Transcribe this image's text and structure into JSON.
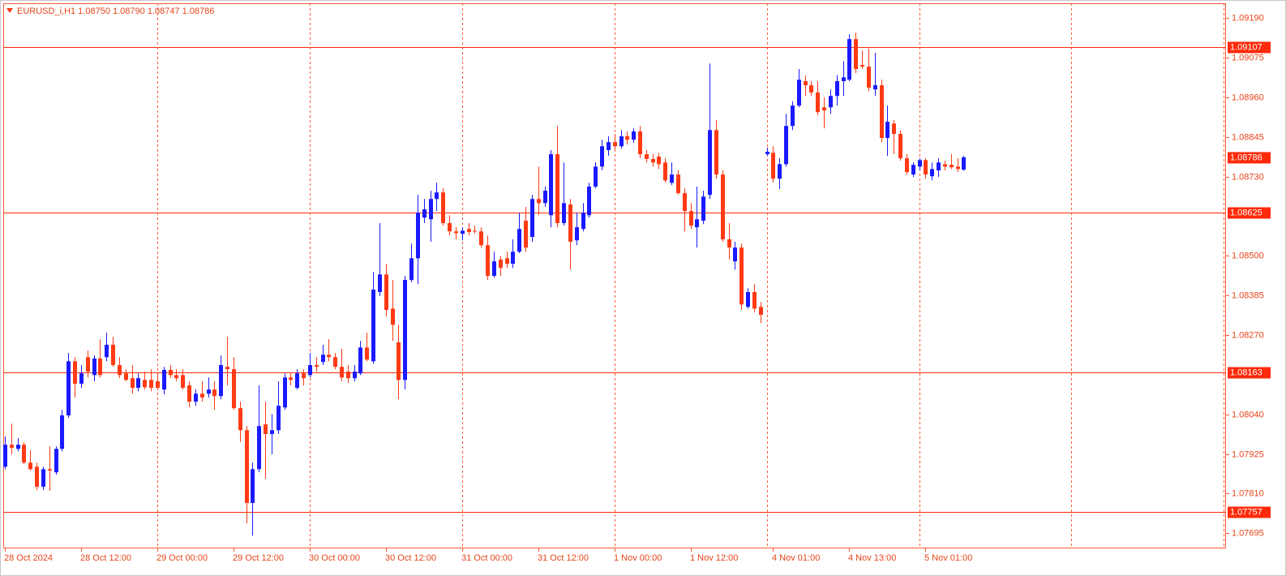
{
  "chart_data": {
    "type": "candlestick",
    "title": "EURUSD_i,H1  1.08750 1.08790 1.08747 1.08786",
    "categories": [
      "28 Oct 2024",
      null,
      null,
      null,
      null,
      null,
      null,
      null,
      null,
      null,
      null,
      null,
      "28 Oct 12:00",
      null,
      null,
      null,
      null,
      null,
      null,
      null,
      null,
      null,
      null,
      null,
      "29 Oct 00:00",
      null,
      null,
      null,
      null,
      null,
      null,
      null,
      null,
      null,
      null,
      null,
      "29 Oct 12:00",
      null,
      null,
      null,
      null,
      null,
      null,
      null,
      null,
      null,
      null,
      null,
      "30 Oct 00:00",
      null,
      null,
      null,
      null,
      null,
      null,
      null,
      null,
      null,
      null,
      null,
      "30 Oct 12:00",
      null,
      null,
      null,
      null,
      null,
      null,
      null,
      null,
      null,
      null,
      null,
      "31 Oct 00:00",
      null,
      null,
      null,
      null,
      null,
      null,
      null,
      null,
      null,
      null,
      null,
      "31 Oct 12:00",
      null,
      null,
      null,
      null,
      null,
      null,
      null,
      null,
      null,
      null,
      null,
      "1 Nov 00:00",
      null,
      null,
      null,
      null,
      null,
      null,
      null,
      null,
      null,
      null,
      null,
      "1 Nov 12:00",
      null,
      null,
      null,
      null,
      null,
      null,
      null,
      null,
      null,
      null,
      null,
      null,
      "4 Nov 01:00",
      null,
      null,
      null,
      null,
      null,
      null,
      null,
      null,
      null,
      null,
      null,
      "4 Nov 13:00",
      null,
      null,
      null,
      null,
      null,
      null,
      null,
      null,
      null,
      null,
      null,
      "5 Nov 01:00",
      null,
      null,
      null,
      null,
      null,
      null
    ],
    "open": [
      1.07888,
      1.07952,
      1.0794,
      1.07952,
      1.079,
      1.07888,
      1.0783,
      1.07881,
      1.07872,
      1.0794,
      1.08037,
      1.08194,
      1.08129,
      1.08206,
      1.08154,
      1.08202,
      1.08206,
      1.08242,
      1.08183,
      1.08159,
      1.08145,
      1.08117,
      1.0814,
      1.0814,
      1.08136,
      1.08112,
      1.08169,
      1.08154,
      1.08154,
      1.08124,
      1.08077,
      1.081,
      1.081,
      1.08112,
      1.08093,
      1.08178,
      1.08171,
      1.08058,
      1.07994,
      1.07783,
      1.07881,
      1.08011,
      1.07983,
      1.07994,
      1.0806,
      1.08147,
      1.08117,
      1.08159,
      1.08154,
      1.08183,
      1.08192,
      1.08213,
      1.08206,
      1.08178,
      1.08164,
      1.08145,
      1.08159,
      1.08234,
      1.08194,
      1.08395,
      1.08446,
      1.08347,
      1.08249,
      1.0814,
      1.0843,
      1.08493,
      1.08611,
      1.08606,
      1.08665,
      1.08684,
      1.08595,
      1.08571,
      1.08564,
      1.08578,
      1.08573,
      1.08571,
      1.08531,
      1.08442,
      1.08489,
      1.08493,
      1.08477,
      1.08512,
      1.08602,
      1.08555,
      1.08665,
      1.08653,
      1.08618,
      1.08795,
      1.08595,
      1.08649,
      1.08545,
      1.08578,
      1.08618,
      1.08701,
      1.08759,
      1.08807,
      1.0883,
      1.08818,
      1.08847,
      1.08837,
      1.08861,
      1.08795,
      1.08781,
      1.08788,
      1.08771,
      1.08712,
      1.08736,
      1.08682,
      1.0863,
      1.08583,
      1.08602,
      1.08677,
      1.08865,
      1.08736,
      1.08548,
      1.08484,
      1.08524,
      1.08352,
      1.08395,
      1.08352,
      1.08795,
      1.08799,
      1.08724,
      1.08766,
      1.08877,
      1.08936,
      1.09007,
      1.08995,
      1.08974,
      1.08931,
      1.08931,
      1.08964,
      1.09007,
      1.09011,
      1.09129,
      1.09054,
      1.09049,
      1.08983,
      1.08995,
      1.08842,
      1.08884,
      1.08854,
      1.08783,
      1.08736,
      1.08759,
      1.08778,
      1.08731,
      1.08748,
      1.08766,
      1.08764,
      1.08759,
      1.0875
    ],
    "high": [
      1.07976,
      1.08013,
      1.07971,
      1.07959,
      1.07936,
      1.079,
      1.07888,
      1.07947,
      1.07947,
      1.08053,
      1.08218,
      1.08206,
      1.08183,
      1.08225,
      1.08211,
      1.08258,
      1.08277,
      1.08265,
      1.08206,
      1.08171,
      1.08183,
      1.08159,
      1.08164,
      1.08171,
      1.08159,
      1.08178,
      1.08183,
      1.08171,
      1.08171,
      1.08136,
      1.08112,
      1.08136,
      1.08147,
      1.08136,
      1.08211,
      1.08265,
      1.08206,
      1.08077,
      1.08006,
      1.079,
      1.08124,
      1.08077,
      1.08041,
      1.08136,
      1.08159,
      1.08159,
      1.08171,
      1.08171,
      1.08218,
      1.08206,
      1.08242,
      1.08258,
      1.08218,
      1.0823,
      1.08183,
      1.08183,
      1.08253,
      1.08277,
      1.08453,
      1.08595,
      1.08477,
      1.0843,
      1.083,
      1.08442,
      1.08536,
      1.08677,
      1.08665,
      1.08689,
      1.08712,
      1.08696,
      1.08618,
      1.08583,
      1.08583,
      1.08595,
      1.08588,
      1.08583,
      1.08559,
      1.08512,
      1.085,
      1.08512,
      1.08548,
      1.08625,
      1.08642,
      1.08677,
      1.08759,
      1.08701,
      1.08807,
      1.08877,
      1.08771,
      1.08665,
      1.08625,
      1.08653,
      1.08712,
      1.08771,
      1.08837,
      1.08847,
      1.08854,
      1.08865,
      1.08861,
      1.0887,
      1.08877,
      1.08807,
      1.08795,
      1.08799,
      1.08783,
      1.08771,
      1.08748,
      1.08696,
      1.08653,
      1.08701,
      1.08689,
      1.09058,
      1.08894,
      1.08748,
      1.08595,
      1.08541,
      1.08536,
      1.08406,
      1.08418,
      1.08366,
      1.08814,
      1.08818,
      1.08783,
      1.08912,
      1.08948,
      1.09042,
      1.09023,
      1.09007,
      1.09007,
      1.0896,
      1.08983,
      1.09025,
      1.09065,
      1.09143,
      1.09148,
      1.09096,
      1.09101,
      1.09089,
      1.09011,
      1.08936,
      1.08894,
      1.08865,
      1.08795,
      1.08771,
      1.08783,
      1.08783,
      1.08771,
      1.08783,
      1.08776,
      1.08795,
      1.08783,
      1.0879
    ],
    "low": [
      1.07881,
      1.07924,
      1.07933,
      1.07896,
      1.07877,
      1.0782,
      1.0782,
      1.07818,
      1.07865,
      1.07933,
      1.0803,
      1.08089,
      1.08117,
      1.08147,
      1.08136,
      1.08147,
      1.08194,
      1.08178,
      1.08145,
      1.08136,
      1.081,
      1.08107,
      1.08112,
      1.08107,
      1.08112,
      1.08098,
      1.08145,
      1.08136,
      1.08112,
      1.0806,
      1.08065,
      1.08077,
      1.08089,
      1.08053,
      1.08084,
      1.08124,
      1.08053,
      1.07959,
      1.07724,
      1.07688,
      1.07872,
      1.07853,
      1.07924,
      1.07983,
      1.08053,
      1.08124,
      1.08112,
      1.08124,
      1.08147,
      1.08164,
      1.08183,
      1.08194,
      1.08171,
      1.08136,
      1.08131,
      1.08136,
      1.08154,
      1.08194,
      1.08187,
      1.08383,
      1.08324,
      1.08253,
      1.08084,
      1.08112,
      1.08423,
      1.08418,
      1.08595,
      1.08541,
      1.0863,
      1.08588,
      1.08559,
      1.08548,
      1.08545,
      1.08559,
      1.08564,
      1.08524,
      1.0843,
      1.08437,
      1.08442,
      1.08465,
      1.08465,
      1.08508,
      1.08512,
      1.08541,
      1.08618,
      1.08642,
      1.08583,
      1.08583,
      1.08588,
      1.0846,
      1.08531,
      1.08571,
      1.08611,
      1.08696,
      1.08748,
      1.0879,
      1.08807,
      1.08811,
      1.08823,
      1.08828,
      1.08783,
      1.08771,
      1.08759,
      1.08752,
      1.08712,
      1.08705,
      1.08677,
      1.08571,
      1.08578,
      1.08524,
      1.08592,
      1.08665,
      1.08724,
      1.08541,
      1.08489,
      1.0846,
      1.08343,
      1.08347,
      1.08336,
      1.08305,
      1.0879,
      1.08712,
      1.08694,
      1.08759,
      1.08865,
      1.08931,
      1.08964,
      1.08964,
      1.08908,
      1.0887,
      1.08912,
      1.08936,
      1.08964,
      1.09007,
      1.0903,
      1.09042,
      1.08978,
      1.08964,
      1.0883,
      1.0879,
      1.08795,
      1.08776,
      1.08736,
      1.08729,
      1.08748,
      1.08724,
      1.08719,
      1.08729,
      1.08748,
      1.08752,
      1.08743,
      1.08747
    ],
    "close": [
      1.07952,
      1.07943,
      1.07952,
      1.079,
      1.07881,
      1.0783,
      1.07881,
      1.07877,
      1.0794,
      1.08037,
      1.08194,
      1.08129,
      1.08159,
      1.08164,
      1.08202,
      1.08154,
      1.08242,
      1.08183,
      1.08154,
      1.0814,
      1.08117,
      1.08145,
      1.08119,
      1.08117,
      1.08117,
      1.08169,
      1.08154,
      1.08145,
      1.08117,
      1.08077,
      1.081,
      1.08089,
      1.08112,
      1.08093,
      1.08183,
      1.08171,
      1.08058,
      1.07994,
      1.07783,
      1.07881,
      1.08006,
      1.07983,
      1.07994,
      1.08065,
      1.08147,
      1.0814,
      1.08159,
      1.08145,
      1.08183,
      1.08178,
      1.08213,
      1.08206,
      1.08178,
      1.08147,
      1.08145,
      1.08164,
      1.08234,
      1.08199,
      1.08402,
      1.08446,
      1.08343,
      1.083,
      1.0814,
      1.0843,
      1.08493,
      1.08625,
      1.08635,
      1.08665,
      1.08684,
      1.08595,
      1.08571,
      1.08566,
      1.08573,
      1.08569,
      1.08571,
      1.08531,
      1.08442,
      1.08484,
      1.08465,
      1.08477,
      1.08512,
      1.08578,
      1.08524,
      1.08665,
      1.08653,
      1.08689,
      1.08795,
      1.08595,
      1.08653,
      1.08541,
      1.08583,
      1.08625,
      1.08701,
      1.08759,
      1.08818,
      1.0883,
      1.08818,
      1.08847,
      1.08837,
      1.08861,
      1.08795,
      1.08781,
      1.08771,
      1.08766,
      1.08719,
      1.08736,
      1.08682,
      1.0863,
      1.08588,
      1.08606,
      1.08672,
      1.08865,
      1.08736,
      1.08548,
      1.08524,
      1.08524,
      1.08359,
      1.08395,
      1.08347,
      1.08329,
      1.08802,
      1.08724,
      1.08766,
      1.08877,
      1.08936,
      1.09011,
      1.08995,
      1.08974,
      1.08917,
      1.08922,
      1.08964,
      1.09007,
      1.09018,
      1.09129,
      1.09042,
      1.09049,
      1.08988,
      1.08995,
      1.08842,
      1.08889,
      1.08854,
      1.08783,
      1.08743,
      1.08764,
      1.08778,
      1.08736,
      1.08752,
      1.08771,
      1.08759,
      1.08757,
      1.08752,
      1.08786
    ],
    "bull_color": "#1a1aff",
    "bear_color": "#ff3a14",
    "ylim": [
      1.07651,
      1.09233
    ],
    "yticks": [
      {
        "value": 1.0919,
        "label": "1.09190"
      },
      1.09075,
      {
        "value": 1.0896,
        "label": "1.08960"
      },
      1.08845,
      {
        "value": 1.0873,
        "label": "1.08730"
      },
      {
        "value": 1.085,
        "label": "1.08500"
      },
      1.08385,
      {
        "value": 1.0827,
        "label": "1.08270"
      },
      {
        "value": 1.0804,
        "label": "1.08040"
      },
      1.07925,
      {
        "value": 1.0781,
        "label": "1.07810"
      },
      1.07695
    ],
    "hlines": [
      1.09107,
      1.08625,
      1.08163,
      1.07757
    ],
    "grid": true
  }
}
